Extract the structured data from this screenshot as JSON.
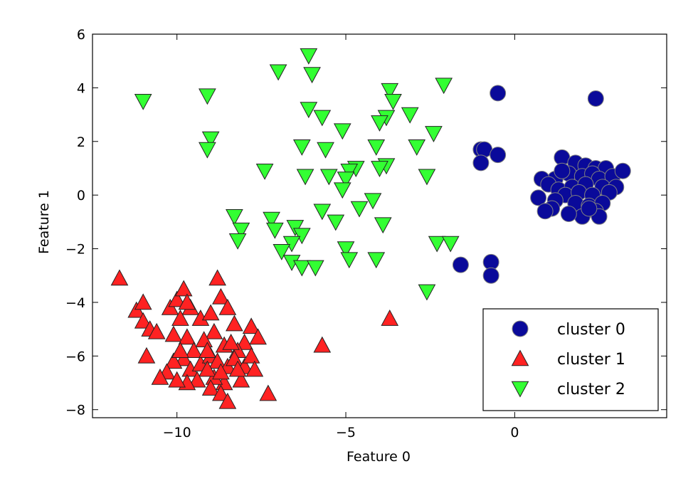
{
  "chart_data": {
    "type": "scatter",
    "title": "",
    "xlabel": "Feature 0",
    "ylabel": "Feature 1",
    "xlim": [
      -12.5,
      4.5
    ],
    "ylim": [
      -8.3,
      6
    ],
    "xticks": [
      -10,
      -5,
      0
    ],
    "yticks": [
      6,
      4,
      2,
      0,
      -2,
      -4,
      -6,
      -8
    ],
    "xtick_labels": [
      "−10",
      "−5",
      "0"
    ],
    "ytick_labels": [
      "6",
      "4",
      "2",
      "0",
      "−2",
      "−4",
      "−6",
      "−8"
    ],
    "grid": false,
    "legend_position": "bottom-right",
    "series": [
      {
        "name": "cluster 0",
        "marker": "circle",
        "color": "#0a0a9a",
        "points": [
          [
            -0.5,
            3.8
          ],
          [
            2.4,
            3.6
          ],
          [
            -1.0,
            1.7
          ],
          [
            -0.9,
            1.7
          ],
          [
            -1.0,
            1.2
          ],
          [
            -0.5,
            1.5
          ],
          [
            -1.6,
            -2.6
          ],
          [
            -0.7,
            -2.5
          ],
          [
            -0.7,
            -3.0
          ],
          [
            1.4,
            1.4
          ],
          [
            1.8,
            1.2
          ],
          [
            2.1,
            1.1
          ],
          [
            2.4,
            1.0
          ],
          [
            2.7,
            1.0
          ],
          [
            1.2,
            0.6
          ],
          [
            1.6,
            0.8
          ],
          [
            2.0,
            0.7
          ],
          [
            2.3,
            0.8
          ],
          [
            2.5,
            0.6
          ],
          [
            2.9,
            0.7
          ],
          [
            3.2,
            0.9
          ],
          [
            0.8,
            0.6
          ],
          [
            1.0,
            0.4
          ],
          [
            1.3,
            0.2
          ],
          [
            1.7,
            0.3
          ],
          [
            2.1,
            0.4
          ],
          [
            2.6,
            0.3
          ],
          [
            3.0,
            0.3
          ],
          [
            1.5,
            0.0
          ],
          [
            1.9,
            0.1
          ],
          [
            2.3,
            0.0
          ],
          [
            2.8,
            0.1
          ],
          [
            0.7,
            -0.1
          ],
          [
            1.2,
            -0.2
          ],
          [
            1.8,
            -0.3
          ],
          [
            2.2,
            -0.4
          ],
          [
            2.6,
            -0.3
          ],
          [
            1.1,
            -0.5
          ],
          [
            0.9,
            -0.6
          ],
          [
            2.4,
            -0.6
          ],
          [
            2.0,
            -0.8
          ],
          [
            2.5,
            -0.8
          ],
          [
            1.6,
            -0.7
          ],
          [
            2.2,
            -0.5
          ],
          [
            1.4,
            0.9
          ]
        ]
      },
      {
        "name": "cluster 1",
        "marker": "triangle-up",
        "color": "#ff2222",
        "points": [
          [
            -11.7,
            -3.1
          ],
          [
            -8.8,
            -3.1
          ],
          [
            -11.2,
            -4.3
          ],
          [
            -11.0,
            -4.0
          ],
          [
            -11.0,
            -4.7
          ],
          [
            -10.8,
            -5.0
          ],
          [
            -10.6,
            -5.1
          ],
          [
            -10.9,
            -6.0
          ],
          [
            -10.2,
            -4.2
          ],
          [
            -10.0,
            -3.9
          ],
          [
            -9.8,
            -3.5
          ],
          [
            -9.6,
            -4.2
          ],
          [
            -9.9,
            -4.6
          ],
          [
            -10.1,
            -5.2
          ],
          [
            -9.7,
            -5.3
          ],
          [
            -9.3,
            -4.6
          ],
          [
            -9.0,
            -4.4
          ],
          [
            -8.7,
            -3.8
          ],
          [
            -8.5,
            -4.2
          ],
          [
            -8.3,
            -4.8
          ],
          [
            -7.8,
            -4.9
          ],
          [
            -7.6,
            -5.3
          ],
          [
            -8.0,
            -5.5
          ],
          [
            -8.2,
            -5.8
          ],
          [
            -8.6,
            -5.6
          ],
          [
            -8.9,
            -5.1
          ],
          [
            -9.2,
            -5.4
          ],
          [
            -9.5,
            -5.8
          ],
          [
            -9.8,
            -6.1
          ],
          [
            -10.1,
            -6.2
          ],
          [
            -10.3,
            -6.6
          ],
          [
            -10.5,
            -6.8
          ],
          [
            -9.6,
            -6.5
          ],
          [
            -9.3,
            -6.3
          ],
          [
            -9.0,
            -6.0
          ],
          [
            -8.8,
            -6.2
          ],
          [
            -8.5,
            -6.4
          ],
          [
            -8.3,
            -6.1
          ],
          [
            -8.0,
            -6.4
          ],
          [
            -7.8,
            -6.0
          ],
          [
            -7.7,
            -6.5
          ],
          [
            -8.1,
            -6.9
          ],
          [
            -8.6,
            -7.0
          ],
          [
            -8.9,
            -6.8
          ],
          [
            -9.1,
            -6.5
          ],
          [
            -9.4,
            -6.9
          ],
          [
            -9.7,
            -7.0
          ],
          [
            -10.0,
            -6.9
          ],
          [
            -9.0,
            -7.2
          ],
          [
            -8.7,
            -7.4
          ],
          [
            -8.5,
            -7.7
          ],
          [
            -7.3,
            -7.4
          ],
          [
            -9.7,
            -4.0
          ],
          [
            -9.1,
            -5.8
          ],
          [
            -8.4,
            -5.5
          ],
          [
            -5.7,
            -5.6
          ],
          [
            -3.7,
            -4.6
          ],
          [
            -9.9,
            -5.8
          ],
          [
            -8.7,
            -6.6
          ],
          [
            -8.2,
            -6.5
          ]
        ]
      },
      {
        "name": "cluster 2",
        "marker": "triangle-down",
        "color": "#33ff33",
        "points": [
          [
            -6.1,
            5.2
          ],
          [
            -6.0,
            4.5
          ],
          [
            -7.0,
            4.6
          ],
          [
            -11.0,
            3.5
          ],
          [
            -9.1,
            3.7
          ],
          [
            -9.0,
            2.1
          ],
          [
            -9.1,
            1.7
          ],
          [
            -6.1,
            3.2
          ],
          [
            -5.7,
            2.9
          ],
          [
            -5.1,
            2.4
          ],
          [
            -3.7,
            3.9
          ],
          [
            -3.6,
            3.5
          ],
          [
            -3.8,
            2.9
          ],
          [
            -3.1,
            3.0
          ],
          [
            -4.0,
            2.7
          ],
          [
            -2.1,
            4.1
          ],
          [
            -2.4,
            2.3
          ],
          [
            -2.9,
            1.8
          ],
          [
            -3.8,
            1.1
          ],
          [
            -4.1,
            1.8
          ],
          [
            -4.0,
            1.0
          ],
          [
            -6.3,
            1.8
          ],
          [
            -5.6,
            1.7
          ],
          [
            -4.7,
            1.0
          ],
          [
            -4.9,
            0.9
          ],
          [
            -5.0,
            0.6
          ],
          [
            -5.1,
            0.2
          ],
          [
            -5.5,
            0.7
          ],
          [
            -6.2,
            0.7
          ],
          [
            -7.4,
            0.9
          ],
          [
            -2.6,
            0.7
          ],
          [
            -4.2,
            -0.2
          ],
          [
            -4.6,
            -0.5
          ],
          [
            -5.7,
            -0.6
          ],
          [
            -8.3,
            -0.8
          ],
          [
            -8.1,
            -1.3
          ],
          [
            -8.2,
            -1.7
          ],
          [
            -7.2,
            -0.9
          ],
          [
            -7.1,
            -1.3
          ],
          [
            -6.5,
            -1.2
          ],
          [
            -6.3,
            -1.5
          ],
          [
            -6.6,
            -1.8
          ],
          [
            -6.9,
            -2.1
          ],
          [
            -6.6,
            -2.5
          ],
          [
            -6.3,
            -2.7
          ],
          [
            -5.9,
            -2.7
          ],
          [
            -5.0,
            -2.0
          ],
          [
            -4.9,
            -2.4
          ],
          [
            -4.1,
            -2.4
          ],
          [
            -2.3,
            -1.8
          ],
          [
            -1.9,
            -1.8
          ],
          [
            -2.6,
            -3.6
          ],
          [
            -3.9,
            -1.1
          ],
          [
            -5.3,
            -1.0
          ]
        ]
      }
    ]
  }
}
